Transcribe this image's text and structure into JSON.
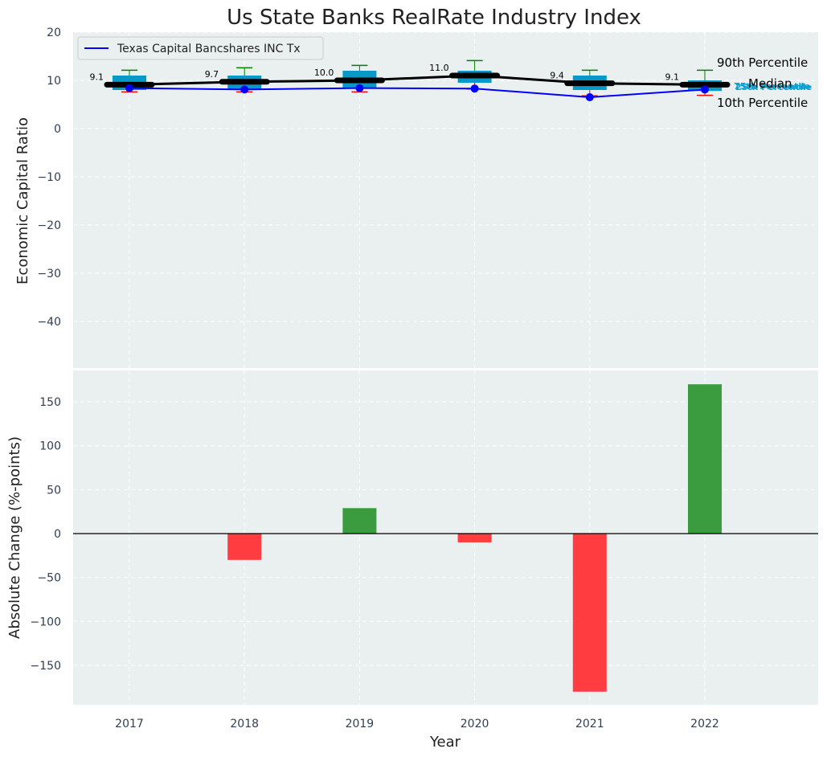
{
  "chart_data": [
    {
      "type": "box",
      "title": "Us State Banks RealRate Industry Index",
      "ylabel": "Economic Capital Ratio",
      "ylim": [
        -50,
        20
      ],
      "yticks": [
        20,
        10,
        0,
        -10,
        -20,
        -30,
        -40
      ],
      "grid": true,
      "categories": [
        "2017",
        "2018",
        "2019",
        "2020",
        "2021",
        "2022"
      ],
      "boxes": [
        {
          "p10": 7.6,
          "p25": 8.0,
          "median": 9.1,
          "p75": 11.0,
          "p90": 12.1
        },
        {
          "p10": 7.6,
          "p25": 8.2,
          "median": 9.7,
          "p75": 11.0,
          "p90": 12.6
        },
        {
          "p10": 7.6,
          "p25": 8.5,
          "median": 10.0,
          "p75": 12.0,
          "p90": 13.1
        },
        {
          "p10": 8.2,
          "p25": 9.5,
          "median": 11.0,
          "p75": 12.0,
          "p90": 14.1
        },
        {
          "p10": 6.8,
          "p25": 8.0,
          "median": 9.4,
          "p75": 11.0,
          "p90": 12.1
        },
        {
          "p10": 6.9,
          "p25": 7.8,
          "median": 9.1,
          "p75": 10.0,
          "p90": 12.1
        }
      ],
      "median_labels": [
        "9.1",
        "9.7",
        "10.0",
        "11.0",
        "9.4",
        "9.1"
      ],
      "series": [
        {
          "name": "Texas Capital Bancshares INC Tx",
          "values": [
            8.4,
            8.1,
            8.4,
            8.3,
            6.5,
            8.1
          ],
          "color": "#0000ff"
        }
      ],
      "legend": "top-left",
      "annotations": [
        "90th Percentile",
        "Median",
        "10th Percentile",
        "75th Percentile",
        "25th Percentile"
      ]
    },
    {
      "type": "bar",
      "xlabel": "Year",
      "ylabel": "Absolute Change (%-points)",
      "ylim": [
        -195,
        190
      ],
      "yticks": [
        150,
        100,
        50,
        0,
        -50,
        -100,
        -150
      ],
      "grid": true,
      "categories": [
        "2017",
        "2018",
        "2019",
        "2020",
        "2021",
        "2022"
      ],
      "values": [
        0,
        -30,
        29,
        -10,
        -180,
        170
      ],
      "positive_color": "#3a9c3e",
      "negative_color": "#ff3d41"
    }
  ],
  "colors": {
    "panel_bg": "#eaeff0",
    "box": "#0899c9",
    "median_line": "#000000",
    "whisker_top": "#008000",
    "whisker_bottom": "#ff0000"
  }
}
